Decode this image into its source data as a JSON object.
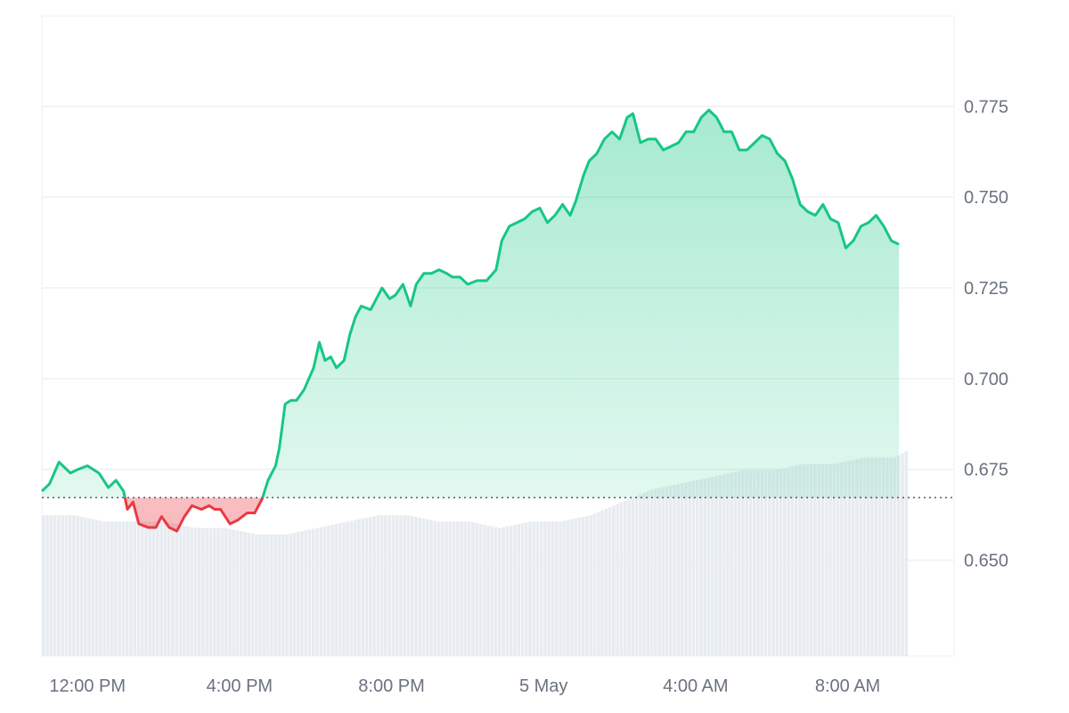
{
  "chart_data": {
    "type": "area",
    "title": "",
    "xlabel": "",
    "ylabel": "",
    "colors": {
      "up_line": "#16c784",
      "down_line": "#ea3943",
      "up_fill": "#16c784",
      "down_fill": "#ea3943",
      "volume": "#e8ecf1",
      "grid": "#eef0f3",
      "baseline": "#555555",
      "tick_text": "#6b7280"
    },
    "grid": true,
    "ylim": [
      0.6236,
      0.7999
    ],
    "y_ticks": [
      {
        "value": 0.775,
        "label": "0.775"
      },
      {
        "value": 0.75,
        "label": "0.750"
      },
      {
        "value": 0.725,
        "label": "0.725"
      },
      {
        "value": 0.7,
        "label": "0.700"
      },
      {
        "value": 0.675,
        "label": "0.675"
      },
      {
        "value": 0.65,
        "label": "0.650"
      }
    ],
    "x_range_hours": [
      10.8,
      34.8
    ],
    "x_ticks": [
      {
        "hour": 12,
        "label": "12:00 PM"
      },
      {
        "hour": 16,
        "label": "4:00 PM"
      },
      {
        "hour": 20,
        "label": "8:00 PM"
      },
      {
        "hour": 24,
        "label": "5 May"
      },
      {
        "hour": 28,
        "label": "4:00 AM"
      },
      {
        "hour": 32,
        "label": "8:00 AM"
      }
    ],
    "baseline": 0.6672,
    "series": [
      {
        "points": [
          [
            10.8,
            0.669
          ],
          [
            11.0,
            0.671
          ],
          [
            11.25,
            0.677
          ],
          [
            11.55,
            0.674
          ],
          [
            11.75,
            0.675
          ],
          [
            12.0,
            0.676
          ],
          [
            12.3,
            0.674
          ],
          [
            12.55,
            0.67
          ],
          [
            12.75,
            0.672
          ],
          [
            12.95,
            0.669
          ],
          [
            13.05,
            0.664
          ],
          [
            13.2,
            0.666
          ],
          [
            13.35,
            0.66
          ],
          [
            13.6,
            0.659
          ],
          [
            13.8,
            0.659
          ],
          [
            13.95,
            0.662
          ],
          [
            14.15,
            0.659
          ],
          [
            14.35,
            0.658
          ],
          [
            14.55,
            0.662
          ],
          [
            14.75,
            0.665
          ],
          [
            15.0,
            0.664
          ],
          [
            15.2,
            0.665
          ],
          [
            15.35,
            0.664
          ],
          [
            15.5,
            0.664
          ],
          [
            15.75,
            0.66
          ],
          [
            15.95,
            0.661
          ],
          [
            16.2,
            0.663
          ],
          [
            16.4,
            0.663
          ],
          [
            16.6,
            0.667
          ],
          [
            16.75,
            0.672
          ],
          [
            16.95,
            0.676
          ],
          [
            17.05,
            0.681
          ],
          [
            17.2,
            0.693
          ],
          [
            17.35,
            0.694
          ],
          [
            17.5,
            0.694
          ],
          [
            17.7,
            0.697
          ],
          [
            17.95,
            0.703
          ],
          [
            18.1,
            0.71
          ],
          [
            18.25,
            0.705
          ],
          [
            18.4,
            0.706
          ],
          [
            18.55,
            0.703
          ],
          [
            18.75,
            0.705
          ],
          [
            18.9,
            0.712
          ],
          [
            19.05,
            0.717
          ],
          [
            19.2,
            0.72
          ],
          [
            19.45,
            0.719
          ],
          [
            19.6,
            0.722
          ],
          [
            19.75,
            0.725
          ],
          [
            19.95,
            0.722
          ],
          [
            20.1,
            0.723
          ],
          [
            20.3,
            0.726
          ],
          [
            20.5,
            0.72
          ],
          [
            20.65,
            0.726
          ],
          [
            20.85,
            0.729
          ],
          [
            21.05,
            0.729
          ],
          [
            21.25,
            0.73
          ],
          [
            21.45,
            0.729
          ],
          [
            21.6,
            0.728
          ],
          [
            21.8,
            0.728
          ],
          [
            22.0,
            0.726
          ],
          [
            22.25,
            0.727
          ],
          [
            22.5,
            0.727
          ],
          [
            22.75,
            0.73
          ],
          [
            22.9,
            0.738
          ],
          [
            23.1,
            0.742
          ],
          [
            23.3,
            0.743
          ],
          [
            23.5,
            0.744
          ],
          [
            23.7,
            0.746
          ],
          [
            23.9,
            0.747
          ],
          [
            24.1,
            0.743
          ],
          [
            24.3,
            0.745
          ],
          [
            24.5,
            0.748
          ],
          [
            24.7,
            0.745
          ],
          [
            24.85,
            0.749
          ],
          [
            25.05,
            0.756
          ],
          [
            25.2,
            0.76
          ],
          [
            25.4,
            0.762
          ],
          [
            25.6,
            0.766
          ],
          [
            25.8,
            0.768
          ],
          [
            26.0,
            0.766
          ],
          [
            26.2,
            0.772
          ],
          [
            26.35,
            0.773
          ],
          [
            26.55,
            0.765
          ],
          [
            26.75,
            0.766
          ],
          [
            26.95,
            0.766
          ],
          [
            27.15,
            0.763
          ],
          [
            27.35,
            0.764
          ],
          [
            27.55,
            0.765
          ],
          [
            27.75,
            0.768
          ],
          [
            27.95,
            0.768
          ],
          [
            28.15,
            0.772
          ],
          [
            28.35,
            0.774
          ],
          [
            28.55,
            0.772
          ],
          [
            28.75,
            0.768
          ],
          [
            28.95,
            0.768
          ],
          [
            29.15,
            0.763
          ],
          [
            29.35,
            0.763
          ],
          [
            29.55,
            0.765
          ],
          [
            29.75,
            0.767
          ],
          [
            29.95,
            0.766
          ],
          [
            30.15,
            0.762
          ],
          [
            30.35,
            0.76
          ],
          [
            30.55,
            0.755
          ],
          [
            30.75,
            0.748
          ],
          [
            30.95,
            0.746
          ],
          [
            31.15,
            0.745
          ],
          [
            31.35,
            0.748
          ],
          [
            31.55,
            0.744
          ],
          [
            31.75,
            0.743
          ],
          [
            31.95,
            0.736
          ],
          [
            32.15,
            0.738
          ],
          [
            32.35,
            0.742
          ],
          [
            32.55,
            0.743
          ],
          [
            32.75,
            0.745
          ],
          [
            32.95,
            0.742
          ],
          [
            33.15,
            0.738
          ],
          [
            33.35,
            0.737
          ]
        ]
      }
    ],
    "volume": {
      "values": [
        [
          10.8,
          0.22
        ],
        [
          11.6,
          0.22
        ],
        [
          12.4,
          0.21
        ],
        [
          13.2,
          0.21
        ],
        [
          14.0,
          0.21
        ],
        [
          14.8,
          0.2
        ],
        [
          15.6,
          0.2
        ],
        [
          16.4,
          0.19
        ],
        [
          17.2,
          0.19
        ],
        [
          18.0,
          0.2
        ],
        [
          18.8,
          0.21
        ],
        [
          19.6,
          0.22
        ],
        [
          20.4,
          0.22
        ],
        [
          21.2,
          0.21
        ],
        [
          22.0,
          0.21
        ],
        [
          22.8,
          0.2
        ],
        [
          23.6,
          0.21
        ],
        [
          24.4,
          0.21
        ],
        [
          25.2,
          0.22
        ],
        [
          26.0,
          0.24
        ],
        [
          26.8,
          0.26
        ],
        [
          27.6,
          0.27
        ],
        [
          28.4,
          0.28
        ],
        [
          29.2,
          0.29
        ],
        [
          30.0,
          0.29
        ],
        [
          30.8,
          0.3
        ],
        [
          31.6,
          0.3
        ],
        [
          32.4,
          0.31
        ],
        [
          33.2,
          0.31
        ],
        [
          33.5,
          0.32
        ]
      ]
    }
  }
}
